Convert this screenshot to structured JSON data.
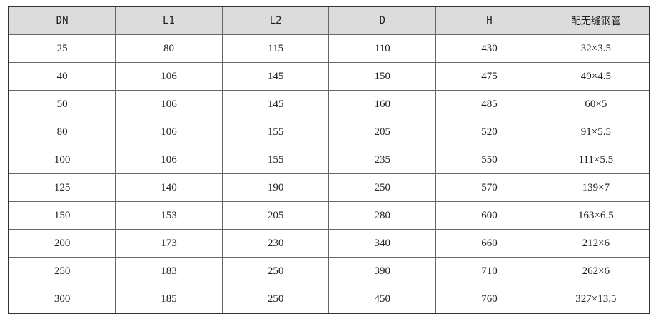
{
  "table": {
    "headers": [
      "DN",
      "L1",
      "L2",
      "D",
      "H",
      "配无缝钢管"
    ],
    "rows": [
      [
        "25",
        "80",
        "115",
        "110",
        "430",
        "32×3.5"
      ],
      [
        "40",
        "106",
        "145",
        "150",
        "475",
        "49×4.5"
      ],
      [
        "50",
        "106",
        "145",
        "160",
        "485",
        "60×5"
      ],
      [
        "80",
        "106",
        "155",
        "205",
        "520",
        "91×5.5"
      ],
      [
        "100",
        "106",
        "155",
        "235",
        "550",
        "111×5.5"
      ],
      [
        "125",
        "140",
        "190",
        "250",
        "570",
        "139×7"
      ],
      [
        "150",
        "153",
        "205",
        "280",
        "600",
        "163×6.5"
      ],
      [
        "200",
        "173",
        "230",
        "340",
        "660",
        "212×6"
      ],
      [
        "250",
        "183",
        "250",
        "390",
        "710",
        "262×6"
      ],
      [
        "300",
        "185",
        "250",
        "450",
        "760",
        "327×13.5"
      ]
    ]
  }
}
